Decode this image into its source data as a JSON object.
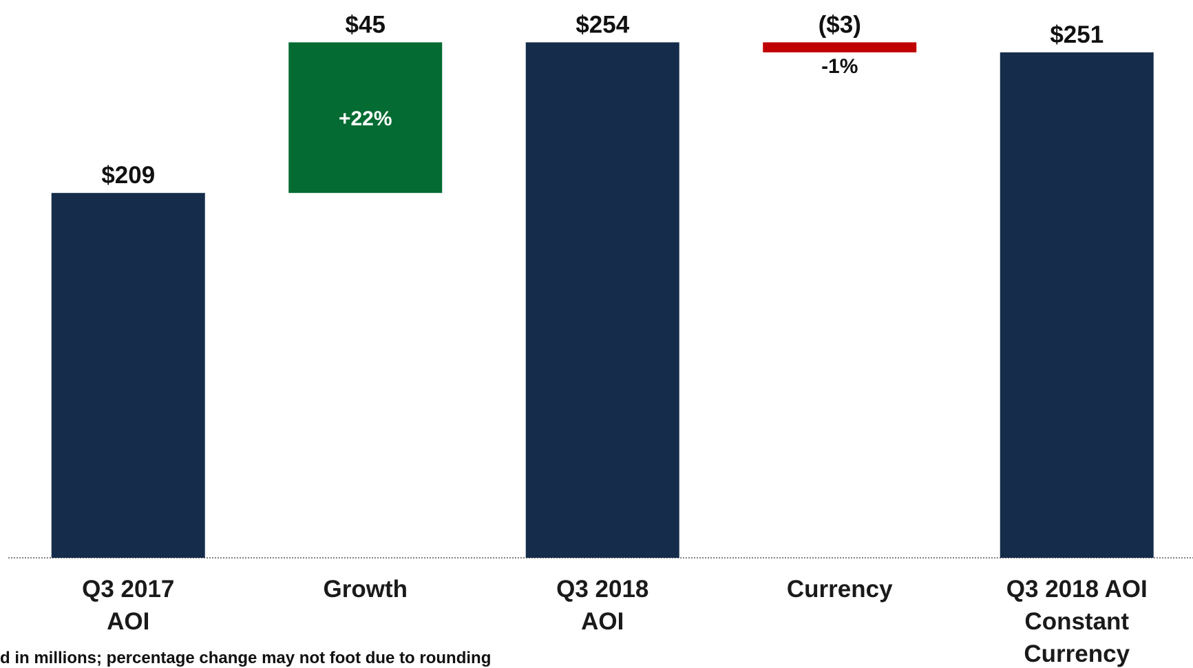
{
  "chart_data": {
    "type": "waterfall",
    "categories": [
      "Q3 2017\nAOI",
      "Growth",
      "Q3 2018\nAOI",
      "Currency",
      "Q3 2018 AOI\nConstant\nCurrency"
    ],
    "measure": [
      "absolute",
      "relative",
      "total",
      "relative",
      "total"
    ],
    "values": [
      209,
      45,
      254,
      -3,
      251
    ],
    "value_labels": [
      "$209",
      "$45",
      "$254",
      "($3)",
      "$251"
    ],
    "change_labels": [
      null,
      "+22%",
      null,
      "-1%",
      null
    ],
    "colors": [
      "#152d4a",
      "#046b33",
      "#152d4a",
      "#c00000",
      "#152d4a"
    ],
    "ylim": [
      100,
      265
    ],
    "footnote": "d in millions; percentage change may not foot due to rounding"
  }
}
